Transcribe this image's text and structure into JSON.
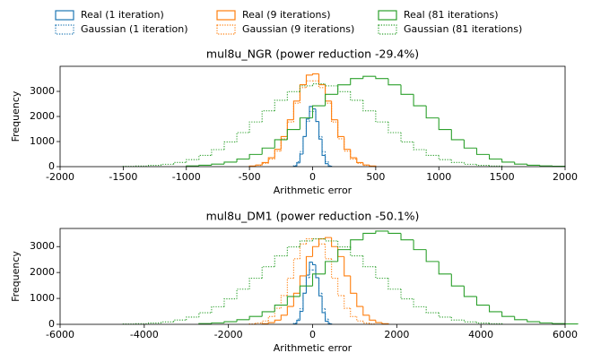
{
  "chart_data": [
    {
      "type": "histogram",
      "title": "mul8u_NGR (power reduction -29.4%)",
      "x_label": "Arithmetic error",
      "y_label": "Frequency",
      "xlim": [
        -2000,
        2000
      ],
      "xticks": [
        -2000,
        -1500,
        -1000,
        -500,
        0,
        500,
        1000,
        1500,
        2000
      ],
      "ylim": [
        0,
        4000
      ],
      "yticks": [
        0,
        1000,
        2000,
        3000
      ],
      "legend": "top",
      "series": [
        {
          "name": "Real (1 iteration)",
          "color": "#1f77b4",
          "linestyle": "solid",
          "bins": [
            -150,
            -125,
            -100,
            -75,
            -50,
            -25,
            0,
            25,
            50,
            75,
            100,
            125,
            150
          ],
          "values": [
            20,
            150,
            500,
            1200,
            1900,
            2400,
            2300,
            1800,
            1100,
            450,
            120,
            15
          ]
        },
        {
          "name": "Gaussian (1 iteration)",
          "color": "#1f77b4",
          "linestyle": "dotted",
          "bins": [
            -150,
            -125,
            -100,
            -75,
            -50,
            -25,
            0,
            25,
            50,
            75,
            100,
            125,
            150
          ],
          "values": [
            40,
            200,
            600,
            1200,
            1800,
            2200,
            2200,
            1800,
            1200,
            600,
            200,
            40
          ]
        },
        {
          "name": "Real (9 iterations)",
          "color": "#ff7f0e",
          "linestyle": "solid",
          "bins": [
            -500,
            -450,
            -400,
            -350,
            -300,
            -250,
            -200,
            -150,
            -100,
            -50,
            0,
            50,
            100,
            150,
            200,
            250,
            300,
            350,
            400,
            450,
            500
          ],
          "values": [
            25,
            67,
            163,
            354,
            690,
            1200,
            1870,
            2615,
            3265,
            3650,
            3700,
            3265,
            2615,
            1870,
            1200,
            690,
            354,
            163,
            67,
            25
          ]
        },
        {
          "name": "Gaussian (9 iterations)",
          "color": "#ff7f0e",
          "linestyle": "dotted",
          "bins": [
            -500,
            -450,
            -400,
            -350,
            -300,
            -250,
            -200,
            -150,
            -100,
            -50,
            0,
            50,
            100,
            150,
            200,
            250,
            300,
            350,
            400,
            450,
            500
          ],
          "values": [
            15,
            50,
            130,
            300,
            620,
            1110,
            1780,
            2530,
            3150,
            3420,
            3420,
            3150,
            2530,
            1780,
            1110,
            620,
            300,
            130,
            50,
            15
          ]
        },
        {
          "name": "Real (81 iterations)",
          "color": "#2ca02c",
          "linestyle": "solid",
          "bins": [
            -1000,
            -900,
            -800,
            -700,
            -600,
            -500,
            -400,
            -300,
            -200,
            -100,
            0,
            100,
            200,
            300,
            400,
            500,
            600,
            700,
            800,
            900,
            1000,
            1100,
            1200,
            1300,
            1400,
            1500,
            1600,
            1700,
            1800,
            1900,
            2000
          ],
          "values": [
            28,
            56,
            102,
            181,
            304,
            487,
            741,
            1073,
            1480,
            1942,
            2425,
            2883,
            3261,
            3511,
            3600,
            3511,
            3261,
            2883,
            2425,
            1942,
            1480,
            1073,
            741,
            487,
            304,
            181,
            102,
            56,
            28,
            14
          ]
        },
        {
          "name": "Gaussian (81 iterations)",
          "color": "#2ca02c",
          "linestyle": "dotted",
          "bins": [
            -1500,
            -1400,
            -1300,
            -1200,
            -1100,
            -1000,
            -900,
            -800,
            -700,
            -600,
            -500,
            -400,
            -300,
            -200,
            -100,
            0,
            100,
            200,
            300,
            400,
            500,
            600,
            700,
            800,
            900,
            1000,
            1100,
            1200,
            1300,
            1400,
            1500
          ],
          "values": [
            13,
            26,
            51,
            94,
            166,
            279,
            447,
            679,
            984,
            1357,
            1781,
            2224,
            2644,
            2990,
            3219,
            3300,
            3219,
            2990,
            2644,
            2224,
            1781,
            1357,
            984,
            679,
            447,
            279,
            166,
            94,
            51,
            26
          ]
        }
      ]
    },
    {
      "type": "histogram",
      "title": "mul8u_DM1 (power reduction -50.1%)",
      "x_label": "Arithmetic error",
      "y_label": "Frequency",
      "xlim": [
        -6000,
        6000
      ],
      "xticks": [
        -6000,
        -4000,
        -2000,
        0,
        2000,
        4000,
        6000
      ],
      "ylim": [
        0,
        3700
      ],
      "yticks": [
        0,
        1000,
        2000,
        3000
      ],
      "series": [
        {
          "name": "Real (1 iteration)",
          "color": "#1f77b4",
          "linestyle": "solid",
          "bins": [
            -450,
            -375,
            -300,
            -225,
            -150,
            -75,
            0,
            75,
            150,
            225,
            300,
            375,
            450
          ],
          "values": [
            20,
            150,
            500,
            1200,
            1900,
            2400,
            2300,
            1800,
            1100,
            450,
            120,
            15
          ]
        },
        {
          "name": "Gaussian (1 iteration)",
          "color": "#1f77b4",
          "linestyle": "dotted",
          "bins": [
            -450,
            -375,
            -300,
            -225,
            -150,
            -75,
            0,
            75,
            150,
            225,
            300,
            375,
            450
          ],
          "values": [
            40,
            200,
            600,
            1200,
            1800,
            2100,
            2100,
            1800,
            1200,
            600,
            200,
            40
          ]
        },
        {
          "name": "Real (9 iterations)",
          "color": "#ff7f0e",
          "linestyle": "solid",
          "bins": [
            -1200,
            -1050,
            -900,
            -750,
            -600,
            -450,
            -300,
            -150,
            0,
            150,
            300,
            450,
            600,
            750,
            900,
            1050,
            1200,
            1350,
            1500,
            1650,
            1800
          ],
          "values": [
            25,
            67,
            163,
            354,
            690,
            1200,
            1870,
            2615,
            3000,
            3300,
            3350,
            3000,
            2615,
            1870,
            1200,
            690,
            354,
            163,
            67,
            25
          ]
        },
        {
          "name": "Gaussian (9 iterations)",
          "color": "#ff7f0e",
          "linestyle": "dotted",
          "bins": [
            -1500,
            -1350,
            -1200,
            -1050,
            -900,
            -750,
            -600,
            -450,
            -300,
            -150,
            0,
            150,
            300,
            450,
            600,
            750,
            900,
            1050,
            1200,
            1350,
            1500
          ],
          "values": [
            15,
            50,
            130,
            300,
            620,
            1110,
            1780,
            2530,
            3100,
            3300,
            3300,
            3100,
            2530,
            1780,
            1110,
            620,
            300,
            130,
            50,
            15
          ]
        },
        {
          "name": "Real (81 iterations)",
          "color": "#2ca02c",
          "linestyle": "solid",
          "bins": [
            -2700,
            -2400,
            -2100,
            -1800,
            -1500,
            -1200,
            -900,
            -600,
            -300,
            0,
            300,
            600,
            900,
            1200,
            1500,
            1800,
            2100,
            2400,
            2700,
            3000,
            3300,
            3600,
            3900,
            4200,
            4500,
            4800,
            5100,
            5400,
            5700,
            6000,
            6300
          ],
          "values": [
            28,
            56,
            102,
            181,
            304,
            487,
            741,
            1073,
            1480,
            1942,
            2425,
            2883,
            3261,
            3511,
            3600,
            3511,
            3261,
            2883,
            2425,
            1942,
            1480,
            1073,
            741,
            487,
            304,
            181,
            102,
            56,
            28,
            14
          ]
        },
        {
          "name": "Gaussian (81 iterations)",
          "color": "#2ca02c",
          "linestyle": "dotted",
          "bins": [
            -4500,
            -4200,
            -3900,
            -3600,
            -3300,
            -3000,
            -2700,
            -2400,
            -2100,
            -1800,
            -1500,
            -1200,
            -900,
            -600,
            -300,
            0,
            300,
            600,
            900,
            1200,
            1500,
            1800,
            2100,
            2400,
            2700,
            3000,
            3300,
            3600,
            3900,
            4200,
            4500
          ],
          "values": [
            13,
            26,
            51,
            94,
            166,
            279,
            447,
            679,
            984,
            1357,
            1781,
            2224,
            2644,
            2990,
            3219,
            3300,
            3219,
            2990,
            2644,
            2224,
            1781,
            1357,
            984,
            679,
            447,
            279,
            166,
            94,
            51,
            26
          ]
        }
      ]
    }
  ]
}
